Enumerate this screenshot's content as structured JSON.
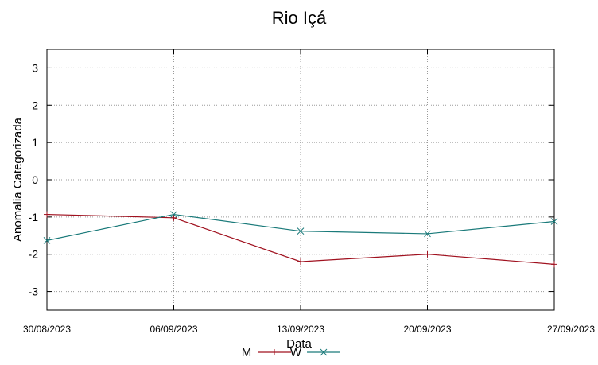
{
  "chart_data": {
    "type": "line",
    "title": "Rio Içá",
    "xlabel": "Data",
    "ylabel": "Anomalia Categorizada",
    "x": [
      "30/08/2023",
      "06/09/2023",
      "13/09/2023",
      "20/09/2023",
      "27/09/2023"
    ],
    "ylim": [
      -3.5,
      3.5
    ],
    "yticks": [
      3,
      2,
      1,
      0,
      -1,
      -2,
      -3
    ],
    "ytick_labels": [
      "3",
      "2",
      "1",
      "0",
      "-1",
      "-2",
      "-3"
    ],
    "grid": true,
    "legend_position": "bottom",
    "series": [
      {
        "name": "M",
        "color": "#a0111f",
        "marker": "plus",
        "values": [
          -0.93,
          -1.02,
          -2.2,
          -2.0,
          -2.27
        ]
      },
      {
        "name": "W",
        "color": "#1a7a7a",
        "marker": "x",
        "values": [
          -1.63,
          -0.93,
          -1.38,
          -1.45,
          -1.12
        ]
      }
    ]
  }
}
